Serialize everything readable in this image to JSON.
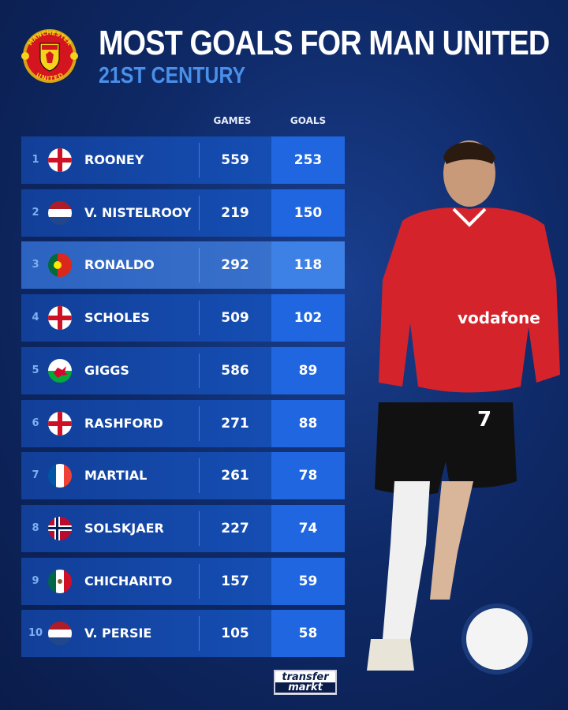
{
  "header": {
    "title": "MOST GOALS FOR MAN UNITED",
    "subtitle": "21ST CENTURY",
    "crest_text_top": "MANCHESTER",
    "crest_text_bottom": "UNITED"
  },
  "columns": {
    "games": "GAMES",
    "goals": "GOALS"
  },
  "colors": {
    "row": "#1652bb",
    "goals_cell": "#1f66e0",
    "highlight": "#3b75d0",
    "subtitle": "#4a8fe8"
  },
  "chart_data": {
    "type": "table",
    "columns": [
      "Rank",
      "Player",
      "Games",
      "Goals"
    ],
    "rows": [
      {
        "rank": "1",
        "flag": "england",
        "name": "ROONEY",
        "games": "559",
        "goals": "253"
      },
      {
        "rank": "2",
        "flag": "netherlands",
        "name": "V. NISTELROOY",
        "games": "219",
        "goals": "150"
      },
      {
        "rank": "3",
        "flag": "portugal",
        "name": "RONALDO",
        "games": "292",
        "goals": "118",
        "highlighted": true
      },
      {
        "rank": "4",
        "flag": "england",
        "name": "SCHOLES",
        "games": "509",
        "goals": "102"
      },
      {
        "rank": "5",
        "flag": "wales",
        "name": "GIGGS",
        "games": "586",
        "goals": "89"
      },
      {
        "rank": "6",
        "flag": "england",
        "name": "RASHFORD",
        "games": "271",
        "goals": "88"
      },
      {
        "rank": "7",
        "flag": "france",
        "name": "MARTIAL",
        "games": "261",
        "goals": "78"
      },
      {
        "rank": "8",
        "flag": "norway",
        "name": "SOLSKJAER",
        "games": "227",
        "goals": "74"
      },
      {
        "rank": "9",
        "flag": "mexico",
        "name": "CHICHARITO",
        "games": "157",
        "goals": "59"
      },
      {
        "rank": "10",
        "flag": "netherlands",
        "name": "V. PERSIE",
        "games": "105",
        "goals": "58"
      }
    ]
  },
  "player_image": {
    "shirt_sponsor": "vodafone",
    "shirt_number": "7"
  },
  "footer": {
    "logo_line1": "transfer",
    "logo_line2": "markt"
  }
}
